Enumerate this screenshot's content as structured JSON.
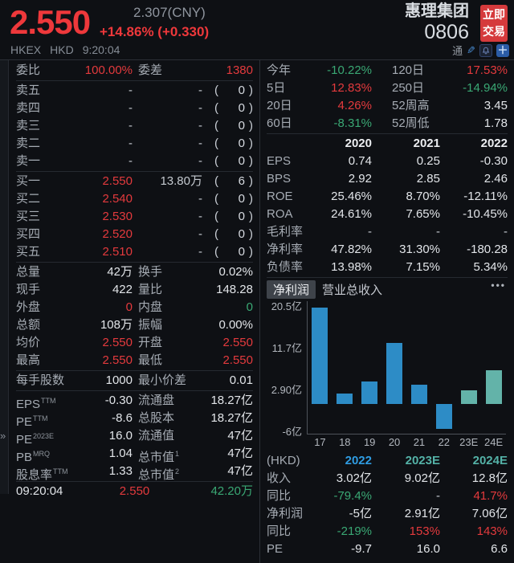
{
  "header": {
    "price": "2.550",
    "cny_price": "2.307(CNY)",
    "change": "+14.86% (+0.330)",
    "exchange": "HKEX",
    "currency": "HKD",
    "time": "9:20:04",
    "stock_name": "惠理集团",
    "stock_code": "0806",
    "trade_button": "立即交易",
    "connect_label": "通",
    "icons": [
      "edit-icon",
      "alert-bell-icon",
      "add-watchlist-icon"
    ]
  },
  "colors": {
    "up_red": "#e43a3d",
    "down_green": "#3aa874",
    "bar_actual_blue": "#2d8cc6",
    "bar_estimate_teal": "#63b3a9",
    "year_2022_blue": "#2f9ce2",
    "estimate_header_teal": "#54b2a7",
    "trade_button_red": "#d53a3c"
  },
  "left_panel": {
    "commission_row": [
      {
        "t": "委比",
        "c": "label"
      },
      {
        "t": "100.00%",
        "c": "red"
      },
      {
        "t": "委差",
        "c": "label"
      },
      {
        "t": "1380",
        "c": "red"
      }
    ],
    "asks": [
      [
        {
          "t": "卖五",
          "c": "label"
        },
        {
          "t": "-",
          "c": "dim"
        },
        {
          "t": "-",
          "c": "dim"
        },
        {
          "t": "0",
          "paren": true
        }
      ],
      [
        {
          "t": "卖四",
          "c": "label"
        },
        {
          "t": "-",
          "c": "dim"
        },
        {
          "t": "-",
          "c": "dim"
        },
        {
          "t": "0",
          "paren": true
        }
      ],
      [
        {
          "t": "卖三",
          "c": "label"
        },
        {
          "t": "-",
          "c": "dim"
        },
        {
          "t": "-",
          "c": "dim"
        },
        {
          "t": "0",
          "paren": true
        }
      ],
      [
        {
          "t": "卖二",
          "c": "label"
        },
        {
          "t": "-",
          "c": "dim"
        },
        {
          "t": "-",
          "c": "dim"
        },
        {
          "t": "0",
          "paren": true
        }
      ],
      [
        {
          "t": "卖一",
          "c": "label"
        },
        {
          "t": "-",
          "c": "dim"
        },
        {
          "t": "-",
          "c": "dim"
        },
        {
          "t": "0",
          "paren": true
        }
      ]
    ],
    "bids": [
      [
        {
          "t": "买一",
          "c": "label"
        },
        {
          "t": "2.550",
          "c": "red"
        },
        {
          "t": "13.80万",
          "c": "dim"
        },
        {
          "t": "6",
          "paren": true
        }
      ],
      [
        {
          "t": "买二",
          "c": "label"
        },
        {
          "t": "2.540",
          "c": "red"
        },
        {
          "t": "-",
          "c": "dim"
        },
        {
          "t": "0",
          "paren": true
        }
      ],
      [
        {
          "t": "买三",
          "c": "label"
        },
        {
          "t": "2.530",
          "c": "red"
        },
        {
          "t": "-",
          "c": "dim"
        },
        {
          "t": "0",
          "paren": true
        }
      ],
      [
        {
          "t": "买四",
          "c": "label"
        },
        {
          "t": "2.520",
          "c": "red"
        },
        {
          "t": "-",
          "c": "dim"
        },
        {
          "t": "0",
          "paren": true
        }
      ],
      [
        {
          "t": "买五",
          "c": "label"
        },
        {
          "t": "2.510",
          "c": "red"
        },
        {
          "t": "-",
          "c": "dim"
        },
        {
          "t": "0",
          "paren": true
        }
      ]
    ],
    "stats": [
      [
        {
          "t": "总量",
          "c": "label"
        },
        {
          "t": "42万",
          "c": "white"
        },
        {
          "t": "换手",
          "c": "label"
        },
        {
          "t": "0.02%",
          "c": "white"
        }
      ],
      [
        {
          "t": "现手",
          "c": "label"
        },
        {
          "t": "422",
          "c": "white"
        },
        {
          "t": "量比",
          "c": "label"
        },
        {
          "t": "148.28",
          "c": "white"
        }
      ],
      [
        {
          "t": "外盘",
          "c": "label"
        },
        {
          "t": "0",
          "c": "red"
        },
        {
          "t": "内盘",
          "c": "label"
        },
        {
          "t": "0",
          "c": "green"
        }
      ],
      [
        {
          "t": "总额",
          "c": "label"
        },
        {
          "t": "108万",
          "c": "white"
        },
        {
          "t": "振幅",
          "c": "label"
        },
        {
          "t": "0.00%",
          "c": "white"
        }
      ],
      [
        {
          "t": "均价",
          "c": "label"
        },
        {
          "t": "2.550",
          "c": "red"
        },
        {
          "t": "开盘",
          "c": "label"
        },
        {
          "t": "2.550",
          "c": "red"
        }
      ],
      [
        {
          "t": "最高",
          "c": "label"
        },
        {
          "t": "2.550",
          "c": "red"
        },
        {
          "t": "最低",
          "c": "label"
        },
        {
          "t": "2.550",
          "c": "red"
        }
      ]
    ],
    "lot": [
      [
        {
          "t": "每手股数",
          "c": "label"
        },
        {
          "t": "1000",
          "c": "white"
        },
        {
          "t": "最小价差",
          "c": "label"
        },
        {
          "t": "0.01",
          "c": "white"
        }
      ]
    ],
    "valuation": [
      [
        {
          "t": "EPS",
          "sup": "TTM",
          "c": "label"
        },
        {
          "t": "-0.30",
          "c": "white"
        },
        {
          "t": "流通盘",
          "c": "label"
        },
        {
          "t": "18.27亿",
          "c": "white"
        }
      ],
      [
        {
          "t": "PE",
          "sup": "TTM",
          "c": "label"
        },
        {
          "t": "-8.6",
          "c": "white"
        },
        {
          "t": "总股本",
          "c": "label"
        },
        {
          "t": "18.27亿",
          "c": "white"
        }
      ],
      [
        {
          "t": "PE",
          "sup": "2023E",
          "c": "label"
        },
        {
          "t": "16.0",
          "c": "white"
        },
        {
          "t": "流通值",
          "c": "label"
        },
        {
          "t": "47亿",
          "c": "white"
        }
      ],
      [
        {
          "t": "PB",
          "sup": "MRQ",
          "c": "label"
        },
        {
          "t": "1.04",
          "c": "white"
        },
        {
          "t": "总市值",
          "sup": "1",
          "c": "label"
        },
        {
          "t": "47亿",
          "c": "white"
        }
      ],
      [
        {
          "t": "股息率",
          "sup": "TTM",
          "c": "label"
        },
        {
          "t": "1.33",
          "c": "white"
        },
        {
          "t": "总市值",
          "sup": "2",
          "c": "label"
        },
        {
          "t": "47亿",
          "c": "white"
        }
      ]
    ],
    "footer": {
      "time": "09:20:04",
      "price": "2.550",
      "volume": "42.20万"
    }
  },
  "right_panel": {
    "performance": [
      [
        {
          "t": "今年",
          "c": "label"
        },
        {
          "t": "-10.22%",
          "c": "green"
        },
        {
          "t": "120日",
          "c": "label"
        },
        {
          "t": "17.53%",
          "c": "red"
        }
      ],
      [
        {
          "t": "5日",
          "c": "label"
        },
        {
          "t": "12.83%",
          "c": "red"
        },
        {
          "t": "250日",
          "c": "label"
        },
        {
          "t": "-14.94%",
          "c": "green"
        }
      ],
      [
        {
          "t": "20日",
          "c": "label"
        },
        {
          "t": "4.26%",
          "c": "red"
        },
        {
          "t": "52周高",
          "c": "label"
        },
        {
          "t": "3.45",
          "c": "white"
        }
      ],
      [
        {
          "t": "60日",
          "c": "label"
        },
        {
          "t": "-8.31%",
          "c": "green"
        },
        {
          "t": "52周低",
          "c": "label"
        },
        {
          "t": "1.78",
          "c": "white"
        }
      ]
    ],
    "years_header": [
      [
        {
          "t": "",
          "c": "label"
        },
        {
          "t": "2020",
          "c": "bold"
        },
        {
          "t": "2021",
          "c": "bold"
        },
        {
          "t": "2022",
          "c": "bold"
        }
      ]
    ],
    "financials": [
      [
        {
          "t": "EPS",
          "c": "label"
        },
        {
          "t": "0.74",
          "c": "white"
        },
        {
          "t": "0.25",
          "c": "white"
        },
        {
          "t": "-0.30",
          "c": "white"
        }
      ],
      [
        {
          "t": "BPS",
          "c": "label"
        },
        {
          "t": "2.92",
          "c": "white"
        },
        {
          "t": "2.85",
          "c": "white"
        },
        {
          "t": "2.46",
          "c": "white"
        }
      ],
      [
        {
          "t": "ROE",
          "c": "label"
        },
        {
          "t": "25.46%",
          "c": "white"
        },
        {
          "t": "8.70%",
          "c": "white"
        },
        {
          "t": "-12.11%",
          "c": "white"
        }
      ],
      [
        {
          "t": "ROA",
          "c": "label"
        },
        {
          "t": "24.61%",
          "c": "white"
        },
        {
          "t": "7.65%",
          "c": "white"
        },
        {
          "t": "-10.45%",
          "c": "white"
        }
      ],
      [
        {
          "t": "毛利率",
          "c": "label"
        },
        {
          "t": "-",
          "c": "dim"
        },
        {
          "t": "-",
          "c": "dim"
        },
        {
          "t": "-",
          "c": "dim"
        }
      ],
      [
        {
          "t": "净利率",
          "c": "label"
        },
        {
          "t": "47.82%",
          "c": "white"
        },
        {
          "t": "31.30%",
          "c": "white"
        },
        {
          "t": "-180.28",
          "c": "white"
        }
      ],
      [
        {
          "t": "负债率",
          "c": "label"
        },
        {
          "t": "13.98%",
          "c": "white"
        },
        {
          "t": "7.15%",
          "c": "white"
        },
        {
          "t": "5.34%",
          "c": "white"
        }
      ]
    ],
    "tabs": {
      "active": "净利润",
      "inactive": "营业总收入",
      "more": "•••"
    },
    "forecast_header": [
      [
        {
          "t": "(HKD)",
          "c": "label"
        },
        {
          "t": "2022",
          "c": "blue"
        },
        {
          "t": "2023E",
          "c": "teal"
        },
        {
          "t": "2024E",
          "c": "teal"
        }
      ]
    ],
    "forecast": [
      [
        {
          "t": "收入",
          "c": "label"
        },
        {
          "t": "3.02亿",
          "c": "white"
        },
        {
          "t": "9.02亿",
          "c": "white"
        },
        {
          "t": "12.8亿",
          "c": "white"
        }
      ],
      [
        {
          "t": "同比",
          "c": "label"
        },
        {
          "t": "-79.4%",
          "c": "green"
        },
        {
          "t": "-",
          "c": "dim"
        },
        {
          "t": "41.7%",
          "c": "red"
        }
      ],
      [
        {
          "t": "净利润",
          "c": "label"
        },
        {
          "t": "-5亿",
          "c": "white"
        },
        {
          "t": "2.91亿",
          "c": "white"
        },
        {
          "t": "7.06亿",
          "c": "white"
        }
      ],
      [
        {
          "t": "同比",
          "c": "label"
        },
        {
          "t": "-219%",
          "c": "green"
        },
        {
          "t": "153%",
          "c": "red"
        },
        {
          "t": "143%",
          "c": "red"
        }
      ],
      [
        {
          "t": "PE",
          "c": "label"
        },
        {
          "t": "-9.7",
          "c": "white"
        },
        {
          "t": "16.0",
          "c": "white"
        },
        {
          "t": "6.6",
          "c": "white"
        }
      ]
    ]
  },
  "chart_data": {
    "type": "bar",
    "title": "净利润",
    "unit": "亿",
    "x": [
      "17",
      "18",
      "19",
      "20",
      "21",
      "22",
      "23E",
      "24E"
    ],
    "values": [
      20.3,
      2.2,
      4.8,
      12.8,
      4.1,
      -5.3,
      2.91,
      7.06
    ],
    "yticks": [
      {
        "label": "20.5亿",
        "value": 20.5
      },
      {
        "label": "11.7亿",
        "value": 11.7
      },
      {
        "label": "2.90亿",
        "value": 2.9
      },
      {
        "label": "-6亿",
        "value": -6
      }
    ],
    "ylim": [
      -6.5,
      21.7
    ],
    "grid": false,
    "legend": "none",
    "bar_color_actual": "#2d8cc6",
    "bar_color_estimate": "#63b3a9",
    "estimate_start_index": 6
  }
}
